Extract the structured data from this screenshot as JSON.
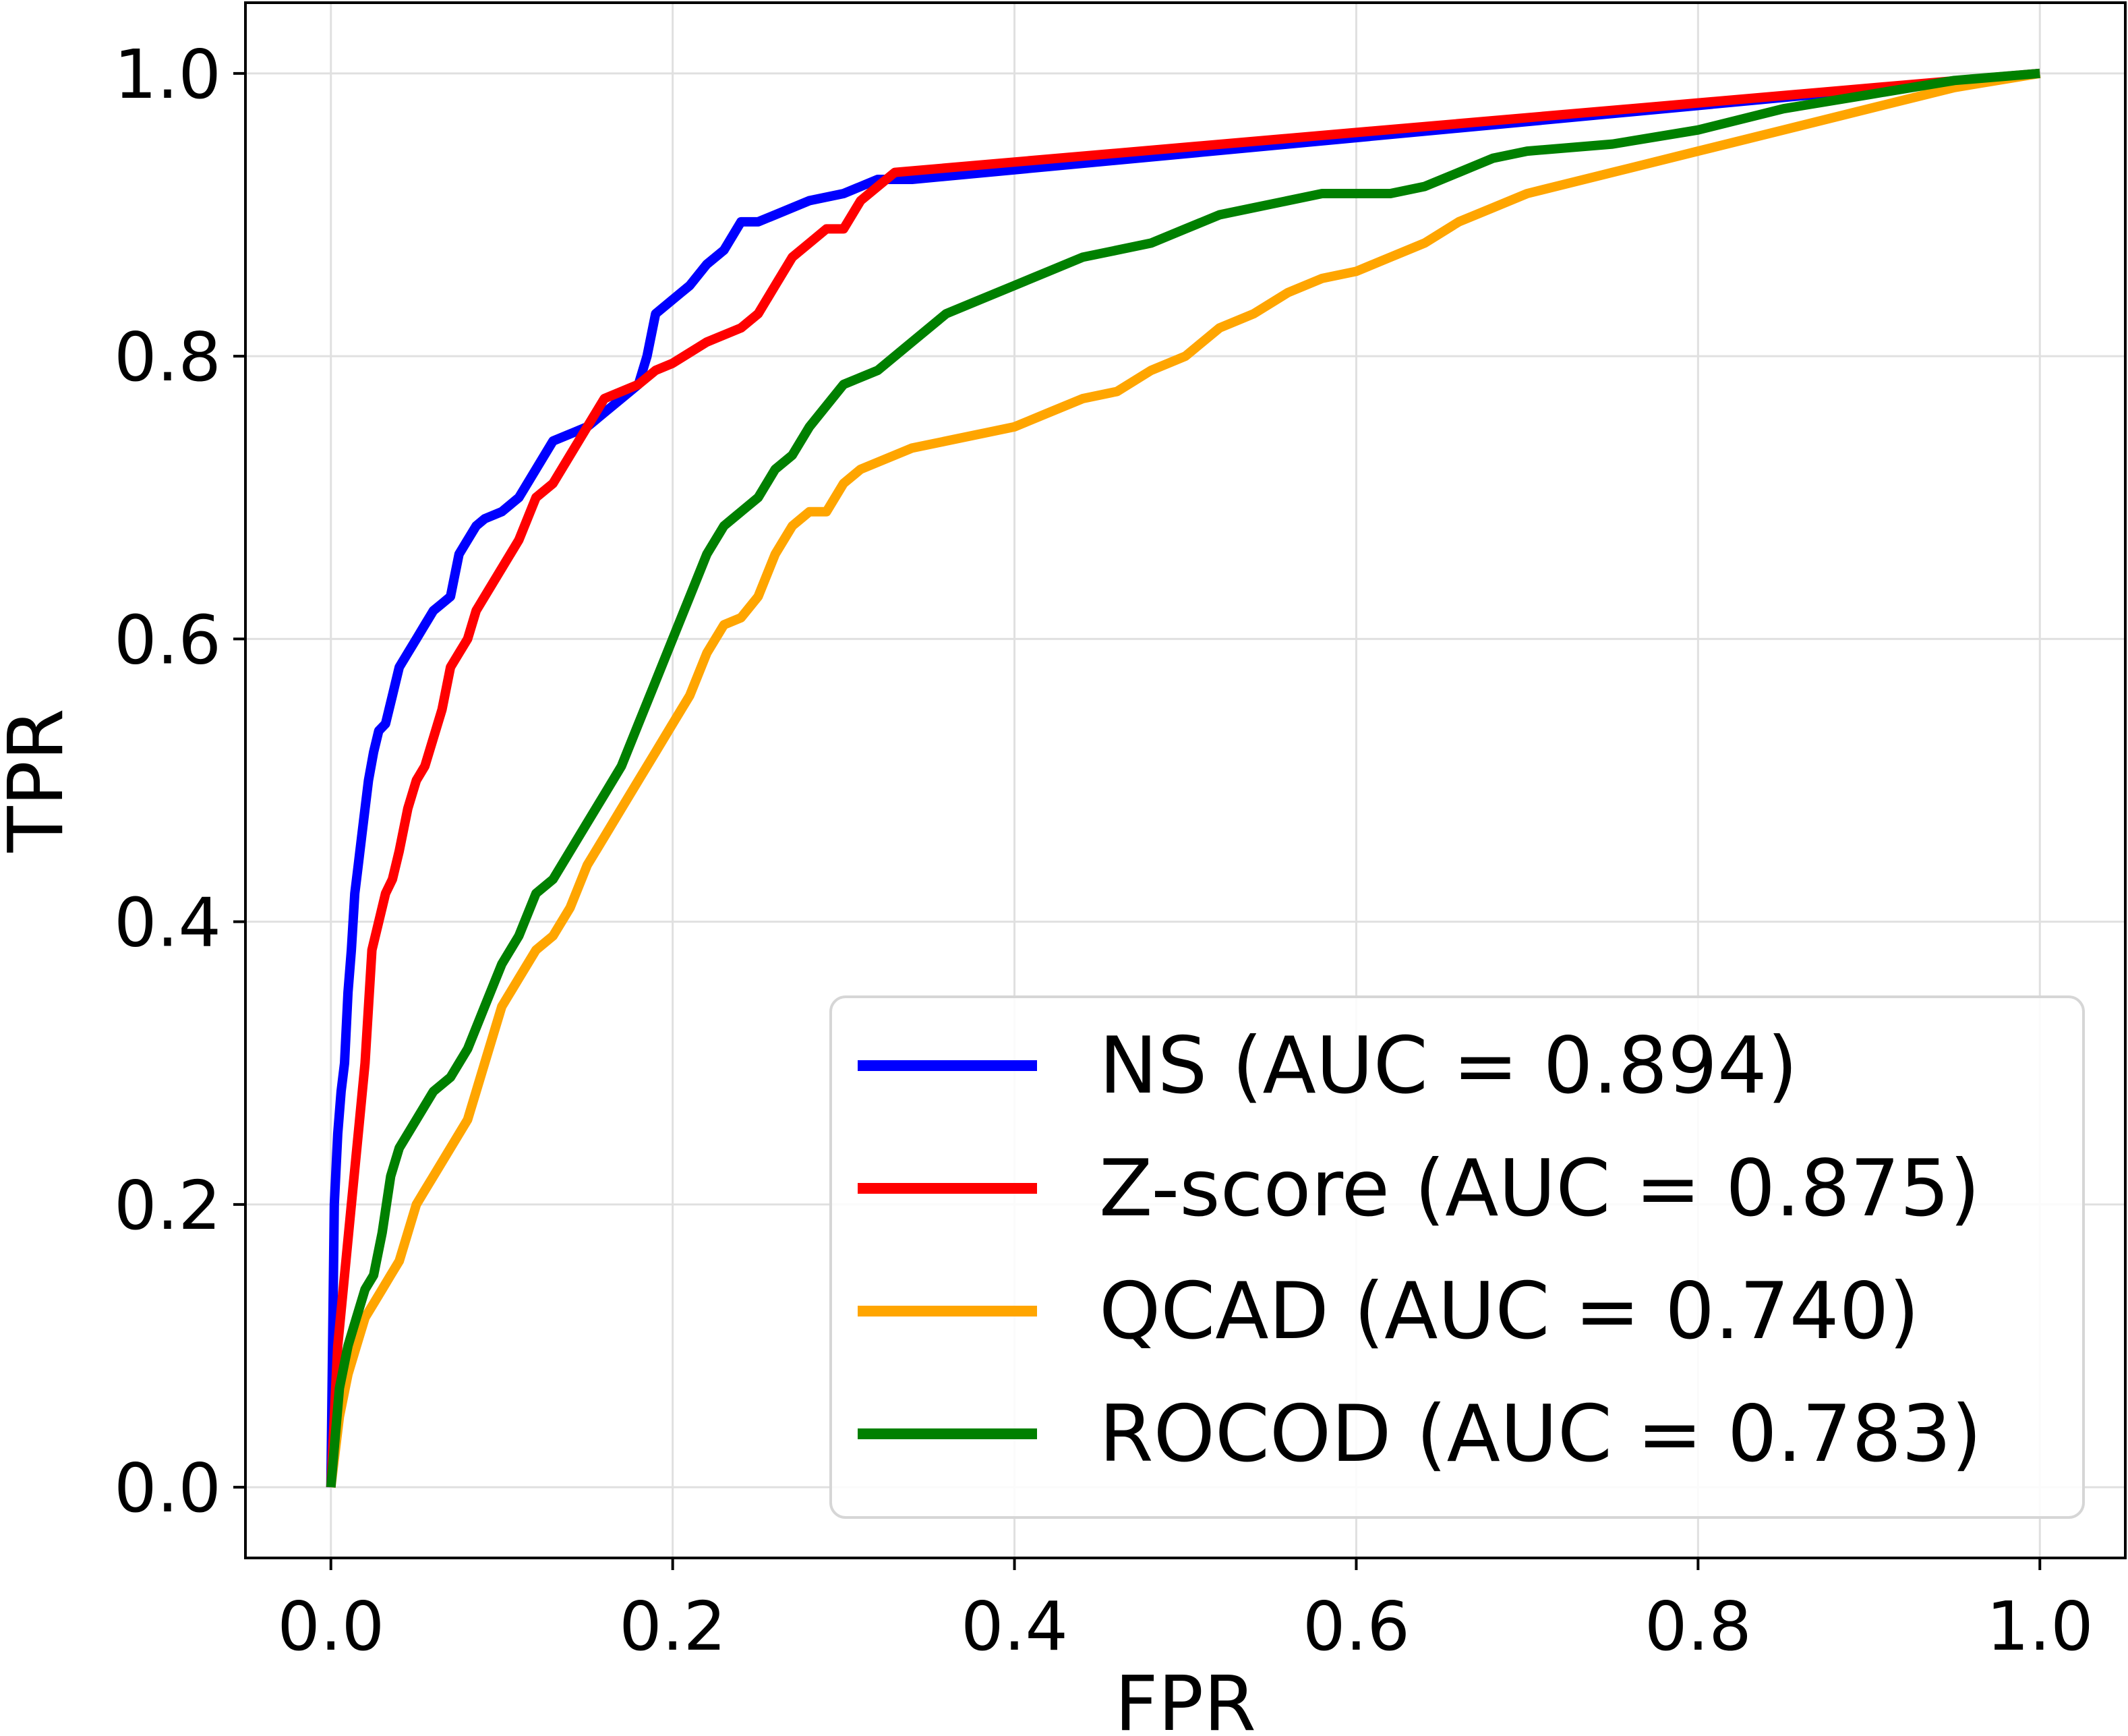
{
  "chart_data": {
    "type": "line",
    "title": "",
    "xlabel": "FPR",
    "ylabel": "TPR",
    "xlim": [
      -0.05,
      1.05
    ],
    "ylim": [
      -0.05,
      1.05
    ],
    "xticks": [
      0.0,
      0.2,
      0.4,
      0.6,
      0.8,
      1.0
    ],
    "yticks": [
      0.0,
      0.2,
      0.4,
      0.6,
      0.8,
      1.0
    ],
    "xtick_labels": [
      "0.0",
      "0.2",
      "0.4",
      "0.6",
      "0.8",
      "1.0"
    ],
    "ytick_labels": [
      "0.0",
      "0.2",
      "0.4",
      "0.6",
      "0.8",
      "1.0"
    ],
    "grid": true,
    "legend_position": "bottom-right",
    "series": [
      {
        "name": "NS (AUC = 0.894)",
        "color": "#0000ff",
        "x": [
          0.0,
          0.002,
          0.004,
          0.006,
          0.008,
          0.01,
          0.012,
          0.014,
          0.016,
          0.018,
          0.02,
          0.022,
          0.025,
          0.028,
          0.032,
          0.036,
          0.04,
          0.045,
          0.05,
          0.055,
          0.06,
          0.065,
          0.07,
          0.075,
          0.08,
          0.085,
          0.09,
          0.1,
          0.11,
          0.12,
          0.13,
          0.14,
          0.15,
          0.16,
          0.17,
          0.175,
          0.18,
          0.185,
          0.19,
          0.2,
          0.21,
          0.22,
          0.23,
          0.24,
          0.25,
          0.26,
          0.28,
          0.3,
          0.32,
          0.34,
          1.0
        ],
        "y": [
          0.0,
          0.2,
          0.25,
          0.28,
          0.3,
          0.35,
          0.38,
          0.42,
          0.44,
          0.46,
          0.48,
          0.5,
          0.52,
          0.535,
          0.54,
          0.56,
          0.58,
          0.59,
          0.6,
          0.61,
          0.62,
          0.625,
          0.63,
          0.66,
          0.67,
          0.68,
          0.685,
          0.69,
          0.7,
          0.72,
          0.74,
          0.745,
          0.75,
          0.76,
          0.77,
          0.775,
          0.78,
          0.8,
          0.83,
          0.84,
          0.85,
          0.865,
          0.875,
          0.895,
          0.895,
          0.9,
          0.91,
          0.915,
          0.925,
          0.925,
          1.0
        ]
      },
      {
        "name": "Z-score (AUC = 0.875)",
        "color": "#ff0000",
        "x": [
          0.0,
          0.004,
          0.008,
          0.012,
          0.016,
          0.02,
          0.024,
          0.028,
          0.032,
          0.036,
          0.04,
          0.045,
          0.05,
          0.055,
          0.06,
          0.065,
          0.07,
          0.075,
          0.08,
          0.085,
          0.09,
          0.1,
          0.11,
          0.12,
          0.13,
          0.14,
          0.15,
          0.16,
          0.17,
          0.18,
          0.19,
          0.2,
          0.22,
          0.24,
          0.25,
          0.26,
          0.27,
          0.28,
          0.29,
          0.3,
          0.31,
          0.32,
          0.33,
          1.0
        ],
        "y": [
          0.0,
          0.1,
          0.15,
          0.2,
          0.25,
          0.3,
          0.38,
          0.4,
          0.42,
          0.43,
          0.45,
          0.48,
          0.5,
          0.51,
          0.53,
          0.55,
          0.58,
          0.59,
          0.6,
          0.62,
          0.63,
          0.65,
          0.67,
          0.7,
          0.71,
          0.73,
          0.75,
          0.77,
          0.775,
          0.78,
          0.79,
          0.795,
          0.81,
          0.82,
          0.83,
          0.85,
          0.87,
          0.88,
          0.89,
          0.89,
          0.91,
          0.92,
          0.93,
          1.0
        ]
      },
      {
        "name": "QCAD (AUC = 0.740)",
        "color": "#ffa500",
        "x": [
          0.0,
          0.005,
          0.01,
          0.015,
          0.02,
          0.025,
          0.03,
          0.035,
          0.04,
          0.045,
          0.05,
          0.055,
          0.06,
          0.065,
          0.07,
          0.075,
          0.08,
          0.085,
          0.09,
          0.095,
          0.1,
          0.11,
          0.12,
          0.13,
          0.14,
          0.15,
          0.16,
          0.17,
          0.18,
          0.19,
          0.2,
          0.21,
          0.22,
          0.23,
          0.24,
          0.25,
          0.26,
          0.27,
          0.28,
          0.29,
          0.3,
          0.31,
          0.32,
          0.34,
          0.36,
          0.38,
          0.4,
          0.42,
          0.44,
          0.46,
          0.48,
          0.5,
          0.52,
          0.54,
          0.56,
          0.58,
          0.6,
          0.62,
          0.64,
          0.66,
          0.68,
          0.7,
          0.75,
          0.8,
          0.85,
          0.9,
          0.95,
          1.0
        ],
        "y": [
          0.0,
          0.05,
          0.08,
          0.1,
          0.12,
          0.13,
          0.14,
          0.15,
          0.16,
          0.18,
          0.2,
          0.21,
          0.22,
          0.23,
          0.24,
          0.25,
          0.26,
          0.28,
          0.3,
          0.32,
          0.34,
          0.36,
          0.38,
          0.39,
          0.41,
          0.44,
          0.46,
          0.48,
          0.5,
          0.52,
          0.54,
          0.56,
          0.59,
          0.61,
          0.615,
          0.63,
          0.66,
          0.68,
          0.69,
          0.69,
          0.71,
          0.72,
          0.725,
          0.735,
          0.74,
          0.745,
          0.75,
          0.76,
          0.77,
          0.775,
          0.79,
          0.8,
          0.82,
          0.83,
          0.845,
          0.855,
          0.86,
          0.87,
          0.88,
          0.895,
          0.905,
          0.915,
          0.93,
          0.945,
          0.96,
          0.975,
          0.99,
          1.0
        ]
      },
      {
        "name": "ROCOD (AUC = 0.783)",
        "color": "#008000",
        "x": [
          0.0,
          0.005,
          0.01,
          0.015,
          0.02,
          0.025,
          0.03,
          0.035,
          0.04,
          0.05,
          0.06,
          0.07,
          0.08,
          0.09,
          0.1,
          0.11,
          0.12,
          0.13,
          0.14,
          0.15,
          0.16,
          0.17,
          0.18,
          0.19,
          0.2,
          0.21,
          0.22,
          0.23,
          0.24,
          0.25,
          0.26,
          0.27,
          0.28,
          0.3,
          0.32,
          0.34,
          0.36,
          0.38,
          0.4,
          0.42,
          0.44,
          0.46,
          0.48,
          0.5,
          0.52,
          0.54,
          0.56,
          0.58,
          0.6,
          0.62,
          0.64,
          0.66,
          0.68,
          0.7,
          0.75,
          0.8,
          0.85,
          0.9,
          0.95,
          1.0
        ],
        "y": [
          0.0,
          0.07,
          0.1,
          0.12,
          0.14,
          0.15,
          0.18,
          0.22,
          0.24,
          0.26,
          0.28,
          0.29,
          0.31,
          0.34,
          0.37,
          0.39,
          0.42,
          0.43,
          0.45,
          0.47,
          0.49,
          0.51,
          0.54,
          0.57,
          0.6,
          0.63,
          0.66,
          0.68,
          0.69,
          0.7,
          0.72,
          0.73,
          0.75,
          0.78,
          0.79,
          0.81,
          0.83,
          0.84,
          0.85,
          0.86,
          0.87,
          0.875,
          0.88,
          0.89,
          0.9,
          0.905,
          0.91,
          0.915,
          0.915,
          0.915,
          0.92,
          0.93,
          0.94,
          0.945,
          0.95,
          0.96,
          0.975,
          0.985,
          0.995,
          1.0
        ]
      }
    ]
  }
}
